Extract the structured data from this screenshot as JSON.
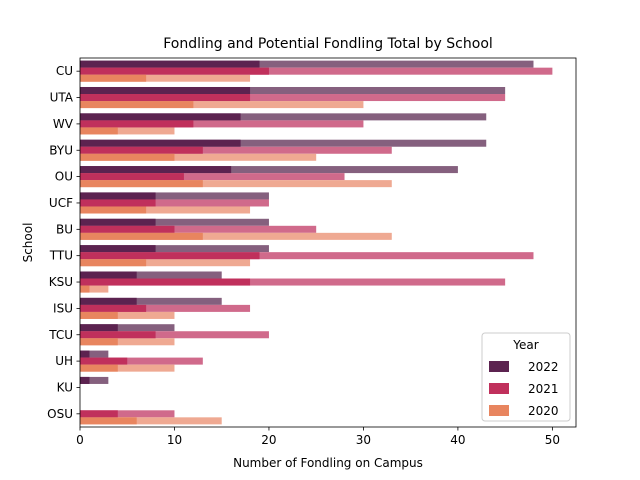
{
  "chart_data": {
    "type": "bar",
    "orientation": "horizontal",
    "title": "Fondling and Potential Fondling Total by School",
    "xlabel": "Number of Fondling on Campus",
    "ylabel": "School",
    "xlim": [
      0,
      52.5
    ],
    "xticks": [
      0,
      10,
      20,
      30,
      40,
      50
    ],
    "categories": [
      "CU",
      "UTA",
      "WV",
      "BYU",
      "OU",
      "UCF",
      "BU",
      "TTU",
      "KSU",
      "ISU",
      "TCU",
      "UH",
      "KU",
      "OSU"
    ],
    "legend": {
      "title": "Year",
      "position": "lower-right"
    },
    "series": [
      {
        "name": "2022",
        "fondling": [
          19,
          18,
          17,
          17,
          16,
          8,
          8,
          8,
          6,
          6,
          4,
          1,
          1,
          0
        ],
        "total": [
          48,
          45,
          43,
          43,
          40,
          20,
          20,
          20,
          15,
          15,
          10,
          3,
          3,
          0
        ],
        "color": "#5c2350",
        "light_color": "#85607e"
      },
      {
        "name": "2021",
        "fondling": [
          20,
          18,
          12,
          13,
          11,
          8,
          10,
          19,
          18,
          7,
          8,
          5,
          0,
          4
        ],
        "total": [
          50,
          45,
          30,
          33,
          28,
          20,
          25,
          48,
          45,
          18,
          20,
          13,
          0,
          10
        ],
        "color": "#c0305c",
        "light_color": "#d06a8b"
      },
      {
        "name": "2020",
        "fondling": [
          7,
          12,
          4,
          10,
          13,
          7,
          13,
          7,
          1,
          4,
          4,
          4,
          0,
          6
        ],
        "total": [
          18,
          30,
          10,
          25,
          33,
          18,
          33,
          18,
          3,
          10,
          10,
          10,
          0,
          15
        ],
        "color": "#e8855f",
        "light_color": "#efa992"
      }
    ]
  }
}
